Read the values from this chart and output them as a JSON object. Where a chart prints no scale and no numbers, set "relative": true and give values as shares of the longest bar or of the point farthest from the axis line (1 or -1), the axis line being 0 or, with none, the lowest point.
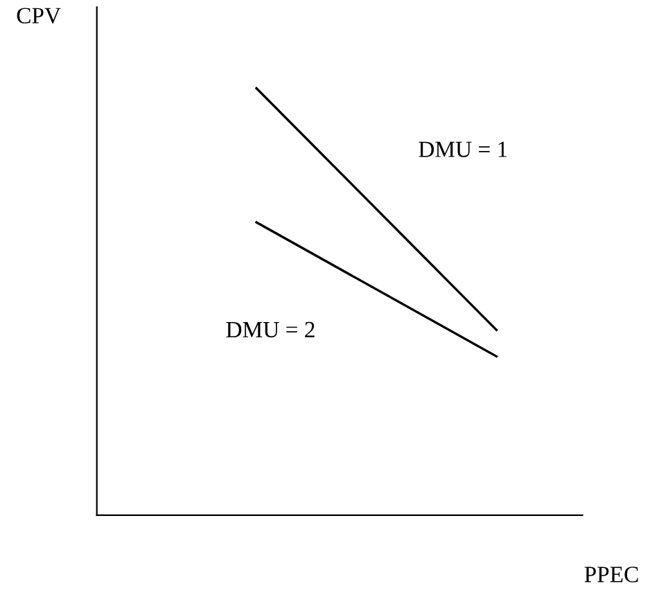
{
  "chart_data": {
    "type": "line",
    "relative": true,
    "xlabel": "PPEC",
    "ylabel": "CPV",
    "categories": [
      null,
      null
    ],
    "series": [
      {
        "name": "DMU = 1",
        "color": "#000000",
        "values": [
          1,
          0.434
        ]
      },
      {
        "name": "DMU = 2",
        "color": "#000000",
        "values": [
          0.686,
          0.372
        ]
      }
    ],
    "grid": false,
    "legend": false,
    "marker": "none",
    "line_style": "solid"
  }
}
